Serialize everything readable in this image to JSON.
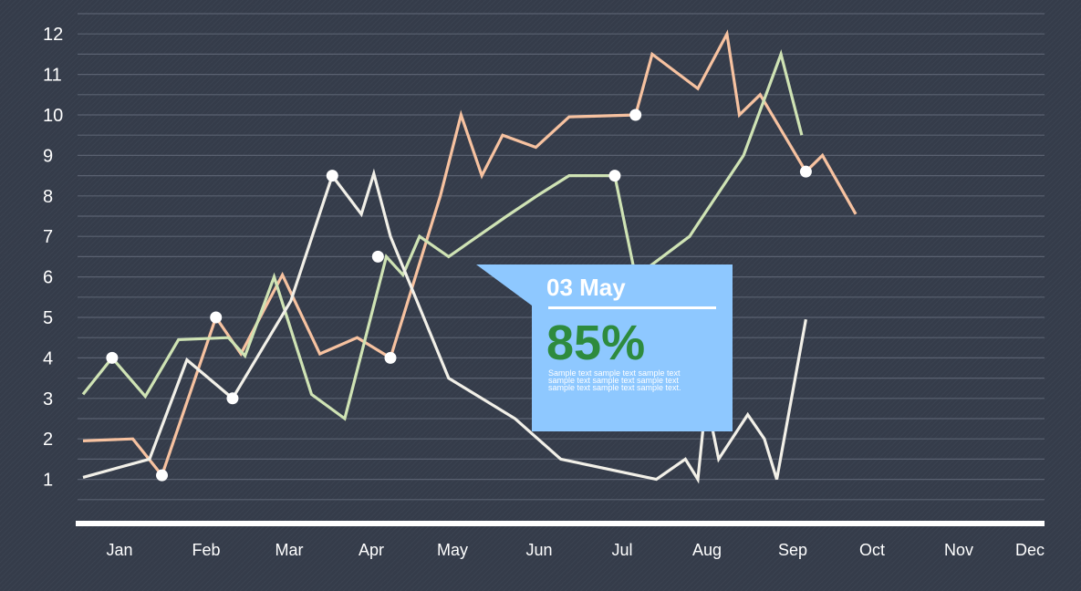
{
  "colors": {
    "background": "#353c4a",
    "grid": "#5a6170",
    "axis": "#ffffff",
    "tooltip_bg": "#8ec8ff",
    "tooltip_value": "#2e8b3e",
    "marker": "#ffffff"
  },
  "tooltip": {
    "date": "03 May",
    "value": "85%",
    "text": "Sample text sample text sample text sample text sample text sample text sample text sample text  sample text."
  },
  "chart_data": {
    "type": "line",
    "categories": [
      "Jan",
      "Feb",
      "Mar",
      "Apr",
      "May",
      "Jun",
      "Jul",
      "Aug",
      "Sep",
      "Oct",
      "Nov",
      "Dec"
    ],
    "ylim": [
      0,
      12.5
    ],
    "yticks": [
      1,
      2,
      3,
      4,
      5,
      6,
      7,
      8,
      9,
      10,
      11,
      12
    ],
    "grid": true,
    "xlim": [
      0.6,
      12.15
    ],
    "series": [
      {
        "color": "#f7c2a0",
        "points": [
          [
            0.6,
            1.95
          ],
          [
            1.2,
            2.0
          ],
          [
            1.55,
            1.1
          ],
          [
            2.2,
            5.0
          ],
          [
            2.5,
            4.1
          ],
          [
            3.0,
            6.05
          ],
          [
            3.45,
            4.1
          ],
          [
            3.9,
            4.5
          ],
          [
            4.3,
            4.0
          ],
          [
            4.9,
            8.0
          ],
          [
            5.15,
            10.0
          ],
          [
            5.4,
            8.5
          ],
          [
            5.65,
            9.5
          ],
          [
            6.05,
            9.2
          ],
          [
            6.45,
            9.95
          ],
          [
            7.25,
            10.0
          ],
          [
            7.45,
            11.5
          ],
          [
            8.0,
            10.65
          ],
          [
            8.35,
            12.0
          ],
          [
            8.5,
            10.0
          ],
          [
            8.75,
            10.5
          ],
          [
            9.3,
            8.6
          ],
          [
            9.5,
            9.0
          ],
          [
            9.9,
            7.55
          ]
        ],
        "markers": [
          [
            1.55,
            1.1
          ],
          [
            2.2,
            5.0
          ],
          [
            4.3,
            4.0
          ],
          [
            7.25,
            10.0
          ],
          [
            9.3,
            8.6
          ]
        ]
      },
      {
        "color": "#cfe3b4",
        "points": [
          [
            0.6,
            3.1
          ],
          [
            0.95,
            4.0
          ],
          [
            1.35,
            3.05
          ],
          [
            1.75,
            4.45
          ],
          [
            2.35,
            4.5
          ],
          [
            2.55,
            4.05
          ],
          [
            2.9,
            6.0
          ],
          [
            3.35,
            3.1
          ],
          [
            3.75,
            2.5
          ],
          [
            4.25,
            6.5
          ],
          [
            4.45,
            6.05
          ],
          [
            4.65,
            7.0
          ],
          [
            5.0,
            6.5
          ],
          [
            5.35,
            7.0
          ],
          [
            5.7,
            7.5
          ],
          [
            6.1,
            8.05
          ],
          [
            6.45,
            8.5
          ],
          [
            7.0,
            8.5
          ],
          [
            7.25,
            6.0
          ],
          [
            7.9,
            7.0
          ],
          [
            8.55,
            9.0
          ],
          [
            9.0,
            11.5
          ],
          [
            9.25,
            9.5
          ]
        ],
        "markers": [
          [
            0.95,
            4.0
          ],
          [
            7.0,
            8.5
          ]
        ]
      },
      {
        "color": "#f2f0e8",
        "points": [
          [
            0.6,
            1.05
          ],
          [
            1.4,
            1.5
          ],
          [
            1.85,
            3.95
          ],
          [
            2.4,
            3.0
          ],
          [
            3.1,
            5.4
          ],
          [
            3.6,
            8.5
          ],
          [
            3.95,
            7.55
          ],
          [
            4.1,
            8.55
          ],
          [
            4.3,
            7.0
          ],
          [
            5.0,
            3.5
          ],
          [
            5.8,
            2.5
          ],
          [
            6.35,
            1.5
          ],
          [
            7.5,
            1.0
          ],
          [
            7.85,
            1.5
          ],
          [
            8.0,
            1.0
          ],
          [
            8.1,
            3.0
          ],
          [
            8.25,
            1.5
          ],
          [
            8.6,
            2.6
          ],
          [
            8.8,
            2.0
          ],
          [
            8.95,
            1.0
          ],
          [
            9.3,
            4.95
          ]
        ],
        "markers": [
          [
            2.4,
            3.0
          ],
          [
            3.6,
            8.5
          ],
          [
            4.15,
            6.5
          ],
          [
            8.1,
            3.0
          ]
        ]
      }
    ]
  }
}
